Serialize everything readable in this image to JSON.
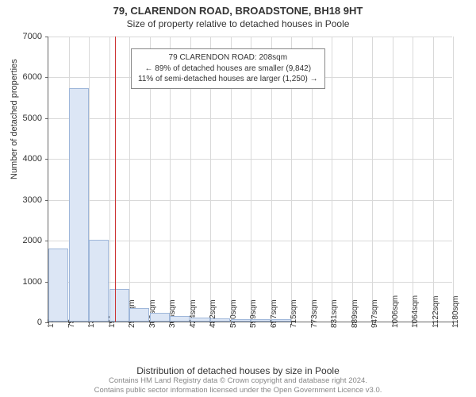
{
  "title_main": "79, CLARENDON ROAD, BROADSTONE, BH18 9HT",
  "title_sub": "Size of property relative to detached houses in Poole",
  "chart": {
    "type": "histogram",
    "x_label": "Distribution of detached houses by size in Poole",
    "y_label": "Number of detached properties",
    "x_ticks": [
      "17sqm",
      "75sqm",
      "133sqm",
      "191sqm",
      "250sqm",
      "308sqm",
      "366sqm",
      "424sqm",
      "482sqm",
      "540sqm",
      "599sqm",
      "657sqm",
      "715sqm",
      "773sqm",
      "831sqm",
      "889sqm",
      "947sqm",
      "1006sqm",
      "1064sqm",
      "1122sqm",
      "1180sqm"
    ],
    "y_ticks": [
      0,
      1000,
      2000,
      3000,
      4000,
      5000,
      6000,
      7000
    ],
    "ylim": [
      0,
      7000
    ],
    "bars": [
      1780,
      5720,
      2010,
      800,
      340,
      210,
      130,
      90,
      70,
      60,
      50,
      50,
      0,
      0,
      0,
      0,
      0,
      0,
      0,
      0
    ],
    "bar_color": "#dce6f5",
    "bar_border": "#9fb7da",
    "grid_color": "#d9d9d9",
    "axis_color": "#666666",
    "background_color": "#ffffff",
    "ref_line_value": 208,
    "ref_line_color": "#cc3333"
  },
  "annotation": {
    "line1": "79 CLARENDON ROAD: 208sqm",
    "line2": "← 89% of detached houses are smaller (9,842)",
    "line3": "11% of semi-detached houses are larger (1,250) →",
    "border_color": "#888888",
    "font_size": 10
  },
  "footer": {
    "line1": "Contains HM Land Registry data © Crown copyright and database right 2024.",
    "line2": "Contains public sector information licensed under the Open Government Licence v3.0.",
    "color": "#888888"
  }
}
